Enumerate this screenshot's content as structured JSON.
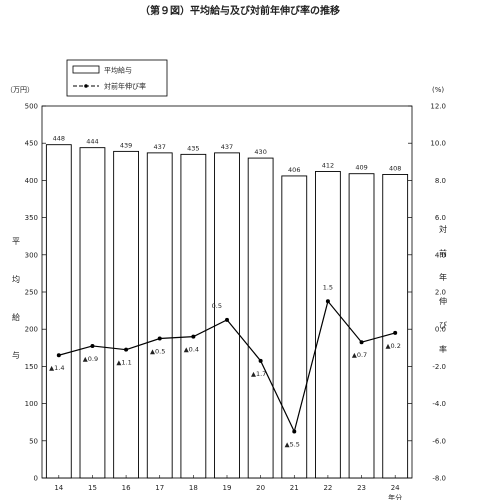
{
  "chart_data": {
    "type": "bar",
    "title": "（第９図）平均給与及び対前年伸び率の推移",
    "categories": [
      "14",
      "15",
      "16",
      "17",
      "18",
      "19",
      "20",
      "21",
      "22",
      "23",
      "24"
    ],
    "x_unit": "年分",
    "left_axis": {
      "unit": "（万円）",
      "label_chars": [
        "平",
        "均",
        "給",
        "与"
      ],
      "ylim": [
        0,
        500
      ],
      "ticks": [
        0,
        50,
        100,
        150,
        200,
        250,
        300,
        350,
        400,
        450,
        500
      ],
      "tick_labels": [
        "0",
        "50",
        "100",
        "150",
        "200",
        "250",
        "300",
        "350",
        "400",
        "450",
        "500"
      ]
    },
    "right_axis": {
      "unit": "(%)",
      "label_chars": [
        "対",
        "前",
        "年",
        "伸",
        "び",
        "率"
      ],
      "ylim": [
        -8.0,
        12.0
      ],
      "ticks": [
        -8,
        -6,
        -4,
        -2,
        0,
        2,
        4,
        6,
        8,
        10,
        12
      ],
      "tick_labels": [
        "-8.0",
        "-6.0",
        "-4.0",
        "-2.0",
        "0.0",
        "2.0",
        "4.0",
        "6.0",
        "8.0",
        "10.0",
        "12.0"
      ]
    },
    "series": [
      {
        "name": "平均給与",
        "kind": "bar",
        "axis": "left",
        "values": [
          448,
          444,
          439,
          437,
          435,
          437,
          430,
          406,
          412,
          409,
          408
        ],
        "labels": [
          "448",
          "444",
          "439",
          "437",
          "435",
          "437",
          "430",
          "406",
          "412",
          "409",
          "408"
        ]
      },
      {
        "name": "対前年伸び率",
        "kind": "line",
        "axis": "right",
        "values": [
          -1.4,
          -0.9,
          -1.1,
          -0.5,
          -0.4,
          0.5,
          -1.7,
          -5.5,
          1.5,
          -0.7,
          -0.2
        ],
        "labels": [
          "▲1.4",
          "▲0.9",
          "▲1.1",
          "▲0.5",
          "▲0.4",
          "0.5",
          "▲1.7",
          "▲5.5",
          "1.5",
          "▲0.7",
          "▲0.2"
        ]
      }
    ],
    "legend_position": "top-left",
    "grid": false
  }
}
